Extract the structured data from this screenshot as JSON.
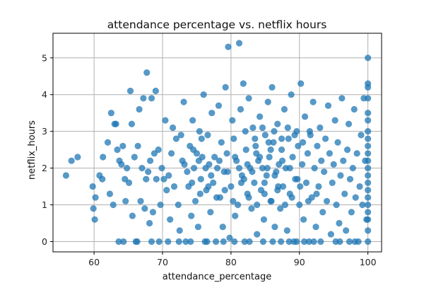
{
  "chart_data": {
    "type": "scatter",
    "title": "attendance percentage vs. netflix hours",
    "xlabel": "attendance_percentage",
    "ylabel": "netflix_hours",
    "xlim": [
      54,
      102
    ],
    "ylim": [
      -0.28,
      5.67
    ],
    "x_ticks": [
      60,
      70,
      80,
      90,
      100
    ],
    "y_ticks": [
      0,
      1,
      2,
      3,
      4,
      5
    ],
    "grid": true,
    "marker_color": "#1f77b4",
    "marker_opacity": 0.75,
    "series": [
      {
        "points": [
          [
            55.9,
            1.8
          ],
          [
            56.7,
            2.2
          ],
          [
            57.6,
            2.3
          ],
          [
            59.8,
            1.5
          ],
          [
            59.9,
            0.9
          ],
          [
            60.2,
            1.2
          ],
          [
            60.1,
            0.6
          ],
          [
            60.8,
            1.8
          ],
          [
            61.2,
            1.7
          ],
          [
            61.3,
            2.3
          ],
          [
            62.0,
            2.7
          ],
          [
            62.3,
            1.3
          ],
          [
            62.5,
            3.5
          ],
          [
            62.8,
            1.0
          ],
          [
            63.0,
            3.2
          ],
          [
            63.2,
            3.2
          ],
          [
            63.4,
            2.5
          ],
          [
            63.7,
            2.2
          ],
          [
            64.0,
            2.1
          ],
          [
            64.2,
            2.6
          ],
          [
            64.3,
            0.0
          ],
          [
            64.5,
            1.7
          ],
          [
            64.6,
            1.1
          ],
          [
            64.8,
            2.0
          ],
          [
            65.1,
            1.6
          ],
          [
            65.3,
            4.1
          ],
          [
            65.5,
            3.2
          ],
          [
            65.6,
            0.7
          ],
          [
            65.9,
            2.3
          ],
          [
            66.1,
            0.0
          ],
          [
            66.4,
            2.6
          ],
          [
            66.6,
            3.6
          ],
          [
            66.8,
            1.1
          ],
          [
            67.0,
            2.0
          ],
          [
            67.2,
            3.9
          ],
          [
            67.4,
            0.9
          ],
          [
            67.6,
            1.7
          ],
          [
            67.7,
            4.6
          ],
          [
            67.9,
            1.9
          ],
          [
            68.1,
            0.5
          ],
          [
            68.2,
            2.2
          ],
          [
            68.4,
            3.9
          ],
          [
            68.6,
            0.8
          ],
          [
            68.8,
            2.4
          ],
          [
            69.0,
            4.1
          ],
          [
            69.1,
            1.7
          ],
          [
            69.4,
            2.5
          ],
          [
            69.7,
            1.0
          ],
          [
            69.9,
            2.0
          ],
          [
            70.2,
            1.7
          ],
          [
            70.4,
            3.3
          ],
          [
            70.6,
            1.4
          ],
          [
            70.9,
            1.8
          ],
          [
            71.1,
            0.6
          ],
          [
            71.3,
            2.4
          ],
          [
            71.5,
            3.1
          ],
          [
            71.7,
            1.5
          ],
          [
            72.0,
            2.8
          ],
          [
            72.3,
            1.0
          ],
          [
            72.5,
            0.3
          ],
          [
            72.7,
            2.9
          ],
          [
            72.9,
            2.2
          ],
          [
            73.1,
            3.8
          ],
          [
            73.4,
            0.0
          ],
          [
            73.6,
            1.9
          ],
          [
            73.8,
            1.5
          ],
          [
            74.0,
            2.6
          ],
          [
            74.2,
            0.7
          ],
          [
            74.4,
            3.3
          ],
          [
            74.6,
            2.0
          ],
          [
            74.8,
            1.1
          ],
          [
            75.0,
            2.4
          ],
          [
            75.2,
            0.4
          ],
          [
            75.4,
            3.0
          ],
          [
            75.6,
            1.7
          ],
          [
            75.8,
            2.3
          ],
          [
            76.0,
            4.0
          ],
          [
            76.2,
            0.0
          ],
          [
            76.4,
            1.4
          ],
          [
            76.6,
            2.9
          ],
          [
            76.8,
            2.1
          ],
          [
            77.0,
            0.8
          ],
          [
            77.2,
            3.5
          ],
          [
            77.4,
            1.6
          ],
          [
            77.6,
            2.3
          ],
          [
            77.8,
            0.0
          ],
          [
            78.0,
            2.0
          ],
          [
            78.2,
            3.7
          ],
          [
            78.4,
            1.2
          ],
          [
            78.6,
            2.7
          ],
          [
            78.8,
            0.4
          ],
          [
            79.0,
            1.9
          ],
          [
            79.2,
            4.2
          ],
          [
            79.4,
            2.4
          ],
          [
            79.6,
            5.3
          ],
          [
            79.8,
            0.1
          ],
          [
            80.0,
            1.5
          ],
          [
            80.2,
            3.3
          ],
          [
            80.4,
            2.8
          ],
          [
            80.6,
            0.7
          ],
          [
            80.8,
            2.2
          ],
          [
            81.0,
            1.0
          ],
          [
            81.2,
            5.4
          ],
          [
            81.4,
            3.6
          ],
          [
            81.6,
            1.8
          ],
          [
            81.8,
            4.3
          ],
          [
            82.0,
            0.0
          ],
          [
            82.2,
            2.5
          ],
          [
            82.4,
            1.3
          ],
          [
            82.6,
            3.9
          ],
          [
            82.8,
            2.0
          ],
          [
            83.0,
            0.9
          ],
          [
            83.2,
            3.1
          ],
          [
            83.4,
            1.6
          ],
          [
            83.6,
            2.6
          ],
          [
            83.8,
            0.2
          ],
          [
            84.0,
            2.2
          ],
          [
            84.2,
            3.4
          ],
          [
            84.4,
            1.4
          ],
          [
            84.6,
            2.0
          ],
          [
            84.8,
            0.6
          ],
          [
            85.0,
            2.9
          ],
          [
            85.2,
            1.8
          ],
          [
            85.4,
            3.8
          ],
          [
            85.6,
            2.3
          ],
          [
            85.8,
            1.1
          ],
          [
            86.0,
            4.2
          ],
          [
            86.2,
            2.7
          ],
          [
            86.4,
            0.4
          ],
          [
            86.6,
            1.9
          ],
          [
            86.8,
            3.2
          ],
          [
            87.0,
            2.1
          ],
          [
            87.2,
            0.9
          ],
          [
            87.4,
            2.5
          ],
          [
            87.6,
            1.5
          ],
          [
            87.8,
            3.6
          ],
          [
            88.0,
            2.0
          ],
          [
            88.2,
            0.3
          ],
          [
            88.4,
            2.8
          ],
          [
            88.6,
            1.3
          ],
          [
            88.8,
            4.0
          ],
          [
            89.0,
            2.3
          ],
          [
            89.2,
            0.0
          ],
          [
            89.4,
            1.7
          ],
          [
            89.6,
            3.0
          ],
          [
            89.8,
            2.6
          ],
          [
            90.0,
            1.0
          ],
          [
            90.2,
            4.3
          ],
          [
            90.4,
            2.1
          ],
          [
            90.6,
            0.6
          ],
          [
            90.8,
            3.4
          ],
          [
            91.0,
            1.6
          ],
          [
            91.2,
            2.4
          ],
          [
            91.4,
            0.0
          ],
          [
            91.6,
            2.9
          ],
          [
            91.8,
            1.2
          ],
          [
            92.0,
            3.8
          ],
          [
            92.2,
            2.0
          ],
          [
            92.4,
            0.4
          ],
          [
            92.6,
            2.6
          ],
          [
            92.8,
            1.5
          ],
          [
            93.0,
            3.1
          ],
          [
            93.2,
            2.2
          ],
          [
            93.4,
            0.8
          ],
          [
            93.6,
            1.9
          ],
          [
            93.8,
            2.8
          ],
          [
            94.0,
            1.1
          ],
          [
            94.2,
            3.7
          ],
          [
            94.4,
            2.4
          ],
          [
            94.6,
            0.2
          ],
          [
            94.8,
            1.6
          ],
          [
            95.0,
            2.1
          ],
          [
            95.2,
            3.3
          ],
          [
            95.4,
            1.0
          ],
          [
            95.6,
            2.7
          ],
          [
            95.8,
            0.5
          ],
          [
            96.0,
            1.8
          ],
          [
            96.2,
            3.9
          ],
          [
            96.4,
            2.2
          ],
          [
            96.6,
            1.3
          ],
          [
            96.8,
            0.3
          ],
          [
            97.0,
            2.5
          ],
          [
            97.2,
            3.2
          ],
          [
            97.4,
            1.7
          ],
          [
            97.6,
            0.8
          ],
          [
            97.8,
            2.0
          ],
          [
            98.0,
            3.6
          ],
          [
            98.2,
            1.2
          ],
          [
            98.4,
            2.4
          ],
          [
            98.6,
            0.0
          ],
          [
            98.8,
            1.5
          ],
          [
            99.0,
            2.9
          ],
          [
            99.2,
            1.0
          ],
          [
            99.4,
            3.9
          ],
          [
            99.6,
            2.2
          ],
          [
            99.8,
            0.6
          ],
          [
            100.0,
            5.0
          ],
          [
            100.0,
            4.3
          ],
          [
            100.0,
            4.2
          ],
          [
            100.0,
            3.9
          ],
          [
            100.0,
            3.5
          ],
          [
            100.0,
            3.3
          ],
          [
            100.0,
            3.0
          ],
          [
            100.0,
            2.8
          ],
          [
            100.0,
            2.6
          ],
          [
            100.0,
            2.4
          ],
          [
            100.0,
            2.2
          ],
          [
            100.0,
            2.0
          ],
          [
            100.0,
            1.8
          ],
          [
            100.0,
            1.6
          ],
          [
            100.0,
            1.4
          ],
          [
            100.0,
            1.2
          ],
          [
            100.0,
            1.0
          ],
          [
            100.0,
            0.8
          ],
          [
            100.0,
            0.6
          ],
          [
            100.0,
            0.3
          ],
          [
            100.0,
            0.0
          ],
          [
            70.8,
            0.0
          ],
          [
            72.4,
            0.0
          ],
          [
            74.1,
            0.0
          ],
          [
            76.5,
            0.0
          ],
          [
            80.5,
            0.0
          ],
          [
            84.7,
            0.0
          ],
          [
            86.1,
            0.0
          ],
          [
            88.5,
            0.0
          ],
          [
            90.7,
            0.0
          ],
          [
            93.1,
            0.0
          ],
          [
            95.3,
            0.0
          ],
          [
            97.3,
            0.0
          ],
          [
            66.3,
            0.0
          ],
          [
            68.4,
            0.0
          ],
          [
            78.9,
            0.0
          ],
          [
            82.7,
            0.0
          ],
          [
            87.3,
            0.0
          ],
          [
            89.6,
            0.0
          ],
          [
            92.1,
            0.0
          ],
          [
            95.9,
            0.0
          ],
          [
            98.1,
            0.0
          ],
          [
            63.6,
            0.0
          ],
          [
            69.5,
            0.0
          ],
          [
            81.2,
            2.0
          ],
          [
            82.4,
            2.1
          ],
          [
            83.1,
            1.9
          ],
          [
            84.2,
            2.3
          ],
          [
            85.3,
            2.0
          ],
          [
            86.4,
            1.8
          ],
          [
            87.5,
            2.2
          ],
          [
            88.6,
            2.0
          ],
          [
            89.7,
            1.7
          ],
          [
            83.7,
            2.4
          ],
          [
            84.9,
            1.6
          ],
          [
            85.8,
            2.5
          ],
          [
            86.9,
            1.5
          ],
          [
            81.9,
            1.7
          ],
          [
            80.6,
            2.3
          ],
          [
            79.5,
            1.9
          ],
          [
            78.3,
            2.2
          ],
          [
            77.1,
            1.8
          ],
          [
            76.3,
            2.0
          ],
          [
            75.3,
            2.2
          ],
          [
            82.1,
            3.0
          ],
          [
            83.5,
            2.8
          ],
          [
            84.6,
            3.1
          ],
          [
            85.5,
            2.7
          ],
          [
            86.3,
            3.0
          ],
          [
            87.4,
            2.8
          ],
          [
            88.3,
            3.1
          ],
          [
            89.3,
            2.9
          ],
          [
            90.5,
            2.7
          ],
          [
            91.5,
            3.0
          ],
          [
            82.6,
            1.2
          ],
          [
            83.8,
            1.0
          ],
          [
            84.9,
            1.3
          ],
          [
            85.9,
            1.1
          ],
          [
            86.8,
            1.4
          ],
          [
            87.9,
            1.0
          ],
          [
            88.9,
            1.2
          ],
          [
            90.1,
            1.5
          ],
          [
            91.3,
            1.1
          ],
          [
            92.5,
            1.3
          ],
          [
            74.3,
            1.6
          ],
          [
            75.5,
            1.3
          ],
          [
            76.7,
            1.5
          ],
          [
            77.9,
            1.2
          ],
          [
            79.1,
            1.4
          ],
          [
            80.3,
            1.1
          ],
          [
            81.5,
            1.6
          ],
          [
            73.2,
            2.1
          ],
          [
            74.5,
            2.5
          ],
          [
            75.7,
            2.8
          ]
        ]
      }
    ]
  }
}
